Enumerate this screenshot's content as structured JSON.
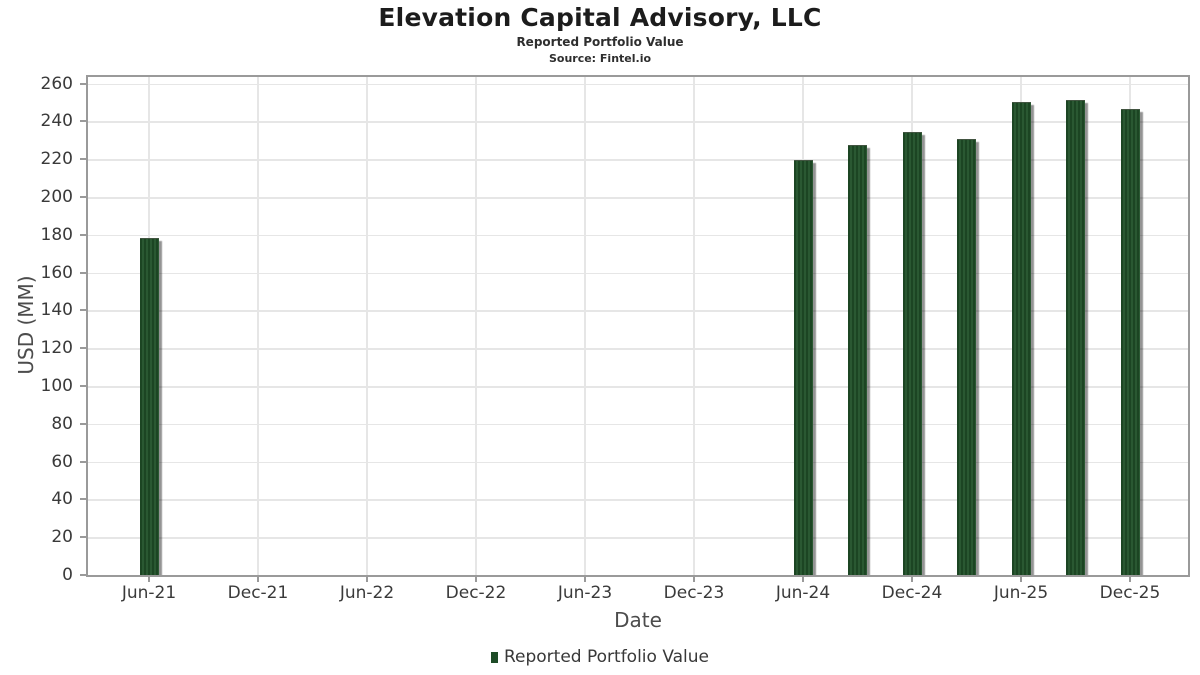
{
  "header": {
    "title": "Elevation Capital Advisory, LLC",
    "subtitle": "Reported Portfolio Value",
    "source": "Source: Fintel.io"
  },
  "chart_data": {
    "type": "bar",
    "title": "Elevation Capital Advisory, LLC",
    "subtitle": "Reported Portfolio Value",
    "source": "Source: Fintel.io",
    "xlabel": "Date",
    "ylabel": "USD (MM)",
    "ylim": [
      0,
      263.5
    ],
    "yticks": [
      0,
      20,
      40,
      60,
      80,
      100,
      120,
      140,
      160,
      180,
      200,
      220,
      240,
      260
    ],
    "grid": true,
    "legend_position": "bottom",
    "x_axis_ticks": [
      {
        "label": "Jun-21",
        "q": 0
      },
      {
        "label": "Dec-21",
        "q": 2
      },
      {
        "label": "Jun-22",
        "q": 4
      },
      {
        "label": "Dec-22",
        "q": 6
      },
      {
        "label": "Jun-23",
        "q": 8
      },
      {
        "label": "Dec-23",
        "q": 10
      },
      {
        "label": "Jun-24",
        "q": 12
      },
      {
        "label": "Dec-24",
        "q": 14
      },
      {
        "label": "Jun-25",
        "q": 16
      },
      {
        "label": "Dec-25",
        "q": 18
      }
    ],
    "series": [
      {
        "name": "Reported Portfolio Value",
        "color": "#1e4c27",
        "points": [
          {
            "date": "Jun-21",
            "q": 0,
            "value": 178
          },
          {
            "date": "Jun-24",
            "q": 12,
            "value": 219
          },
          {
            "date": "Sep-24",
            "q": 13,
            "value": 227
          },
          {
            "date": "Dec-24",
            "q": 14,
            "value": 234
          },
          {
            "date": "Mar-25",
            "q": 15,
            "value": 230
          },
          {
            "date": "Jun-25",
            "q": 16,
            "value": 250
          },
          {
            "date": "Sep-25",
            "q": 17,
            "value": 251
          },
          {
            "date": "Dec-25",
            "q": 18,
            "value": 246
          }
        ]
      }
    ]
  },
  "legend": {
    "label": "Reported Portfolio Value",
    "marker_color": "#1e4c27"
  },
  "colors": {
    "bar_stripe_dark": "#1c4523",
    "bar_stripe_light": "#2a5832",
    "grid": "#e6e6e6",
    "frame": "#9a9a9a",
    "tick_label": "#3a3a3a",
    "axis_title": "#4c4c4c",
    "title_text": "#1c1c1c"
  }
}
